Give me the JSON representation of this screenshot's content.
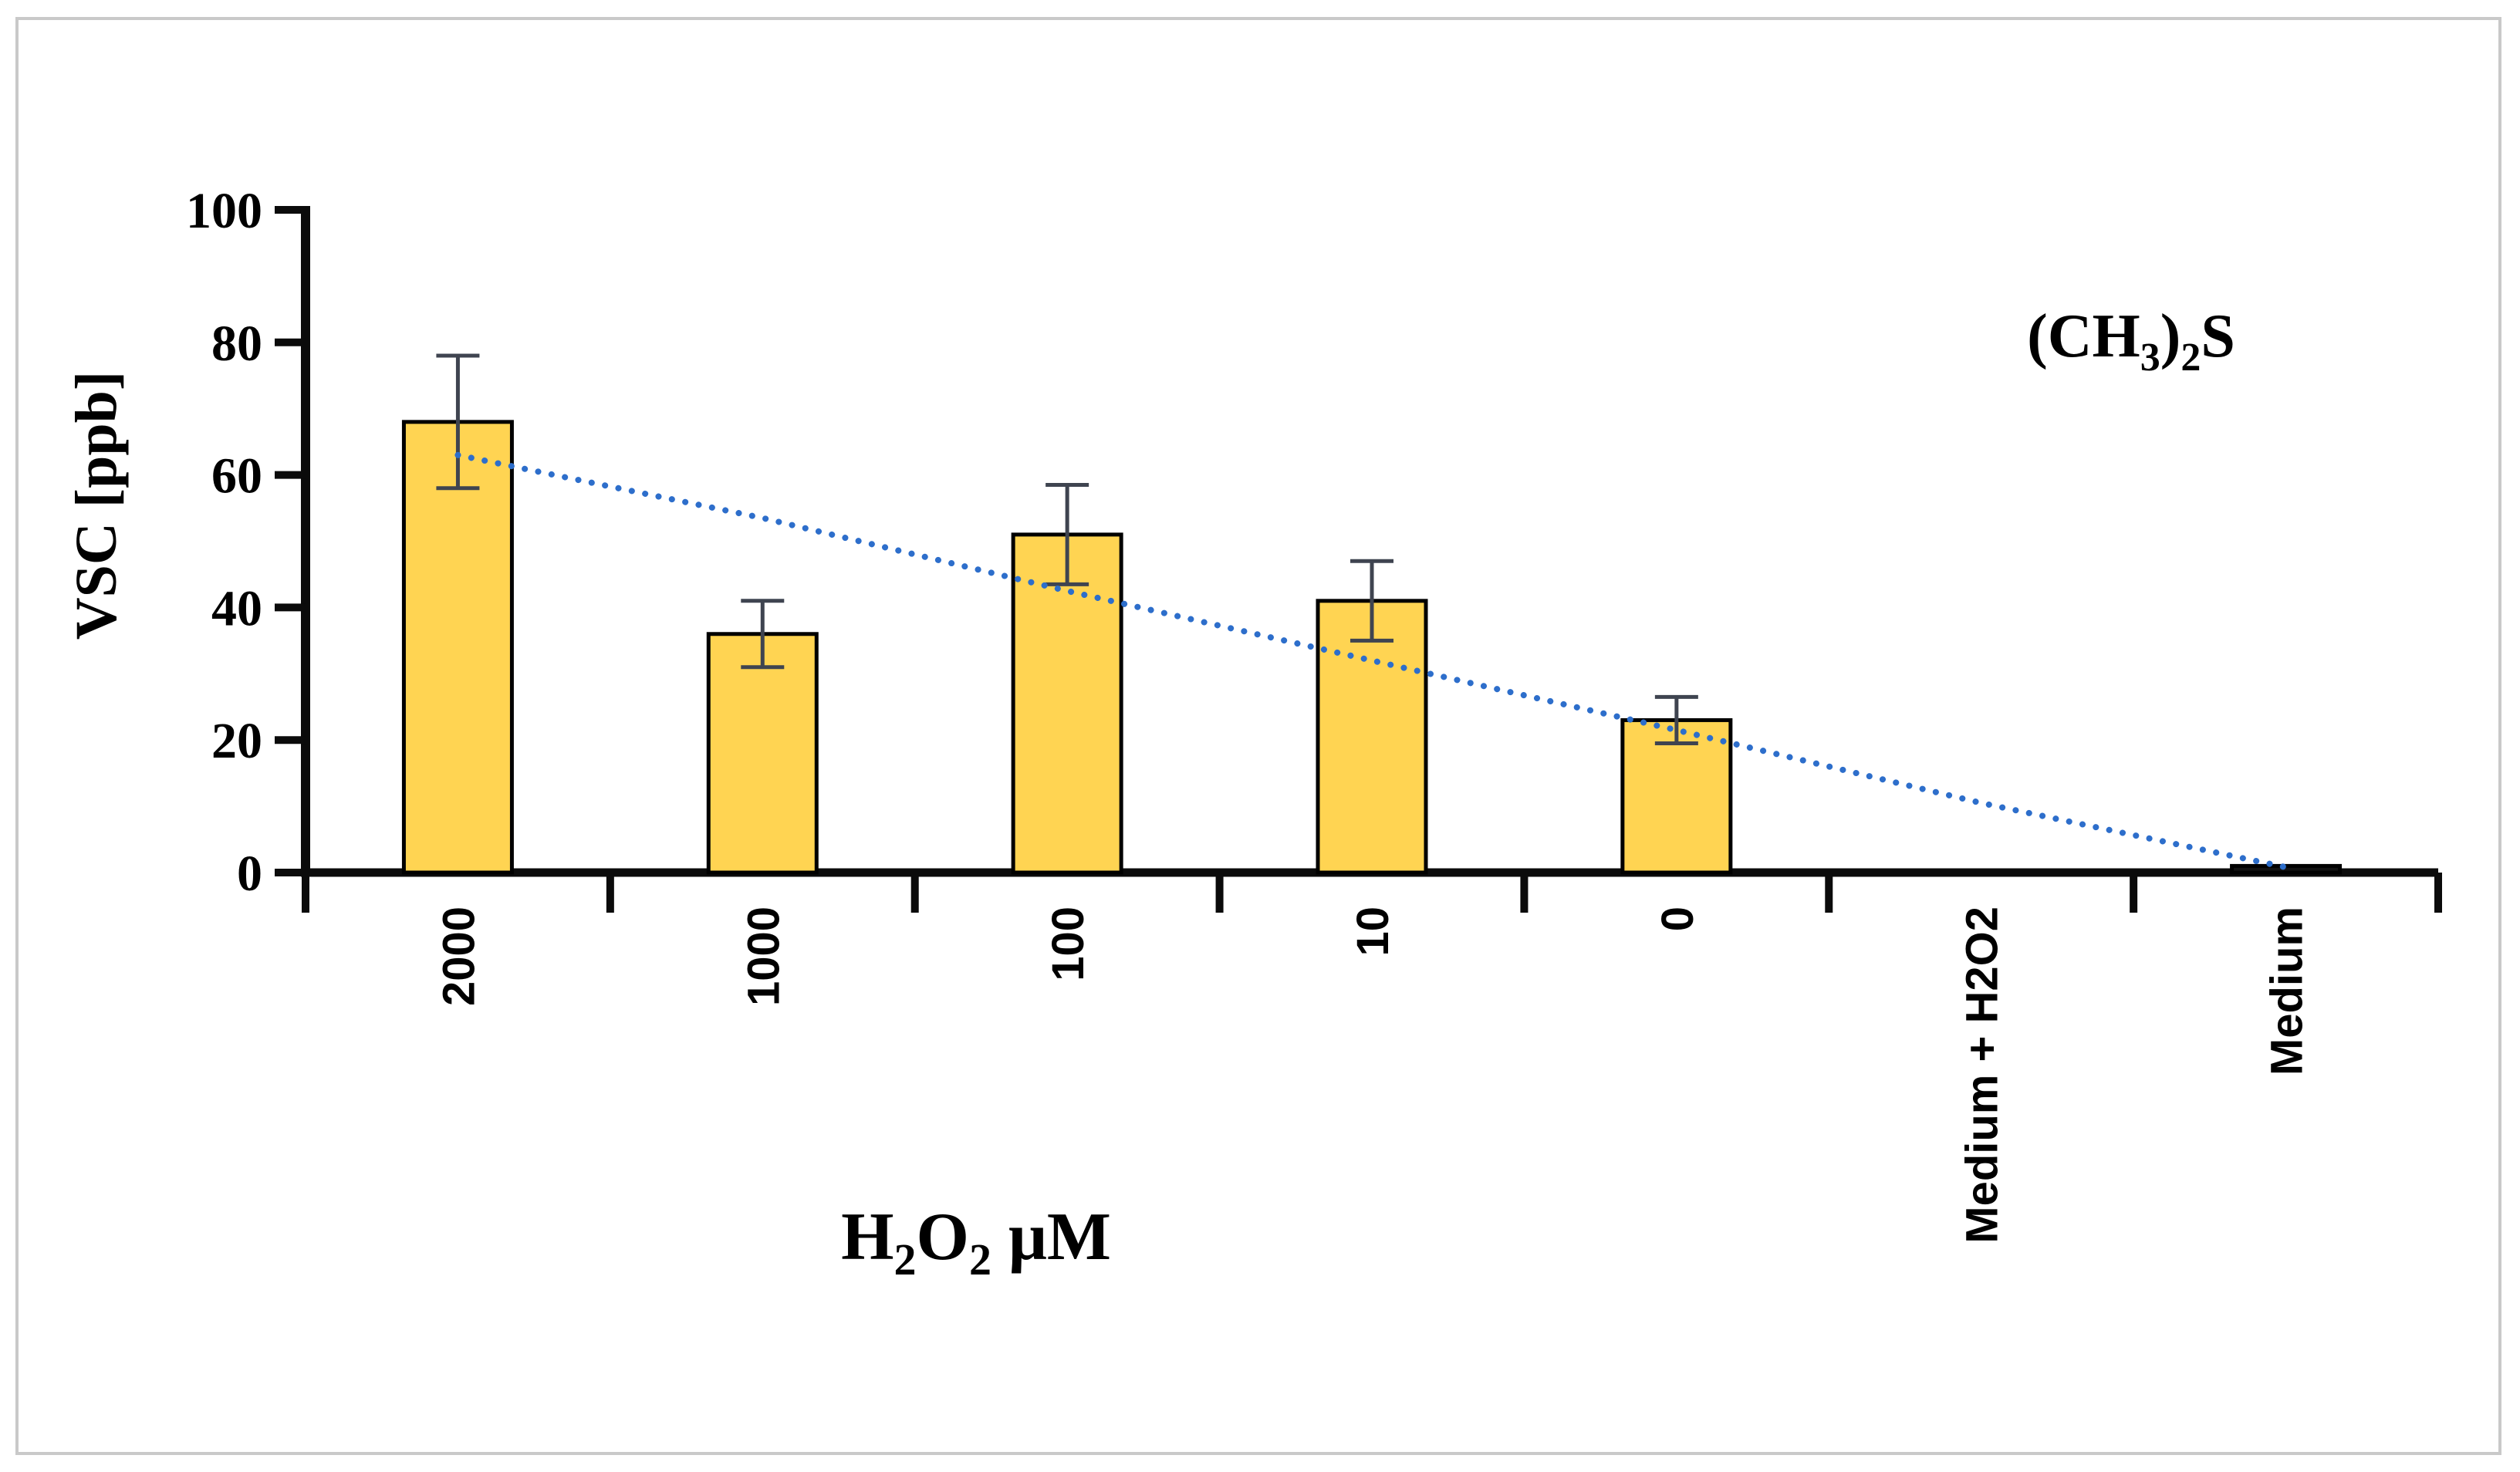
{
  "figure": {
    "background": "#ffffff",
    "frame_border_color": "#c9c9c9"
  },
  "chart_data": {
    "type": "bar",
    "title": "",
    "ylabel": "VSC [ppb]",
    "xlabel": "H2O2 μM",
    "xlabel_rich": [
      {
        "t": "H"
      },
      {
        "t": "2",
        "sub": true
      },
      {
        "t": "O"
      },
      {
        "t": "2",
        "sub": true
      },
      {
        "t": " μM"
      }
    ],
    "annotation": "(CH3)2S",
    "annotation_rich": [
      {
        "t": "(CH"
      },
      {
        "t": "3",
        "sub": true
      },
      {
        "t": ")"
      },
      {
        "t": "2",
        "sub": true
      },
      {
        "t": "S"
      }
    ],
    "categories": [
      "2000",
      "1000",
      "100",
      "10",
      "0",
      "Medium + H2O2",
      "Medium"
    ],
    "values": [
      68,
      36,
      51,
      41,
      23,
      0,
      1
    ],
    "error_bars": [
      10,
      5,
      7.5,
      6,
      3.5,
      0,
      0
    ],
    "y_ticks": [
      0,
      20,
      40,
      60,
      80,
      100
    ],
    "ylim": [
      0,
      100
    ],
    "grid": false,
    "legend": false,
    "bar_fill": "#ffd452",
    "bar_fill_last": "#121212",
    "bar_border": "#000000",
    "error_color": "#3f4450",
    "axis_color": "#0b0b0b",
    "trendline": {
      "style": "dotted",
      "color": "#2d6ecb",
      "values": [
        63,
        53.5,
        42.5,
        32,
        21.5,
        10.5,
        0.8
      ]
    }
  }
}
